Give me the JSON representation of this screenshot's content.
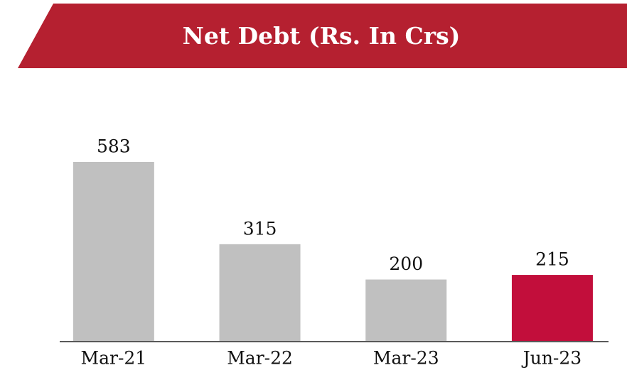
{
  "chart_data": {
    "type": "bar",
    "title": "Net Debt (Rs. In Crs)",
    "categories": [
      "Mar-21",
      "Mar-22",
      "Mar-23",
      "Jun-23"
    ],
    "values": [
      583,
      315,
      200,
      215
    ],
    "colors": [
      "#c0c0c0",
      "#c0c0c0",
      "#c0c0c0",
      "#c20e3b"
    ]
  }
}
